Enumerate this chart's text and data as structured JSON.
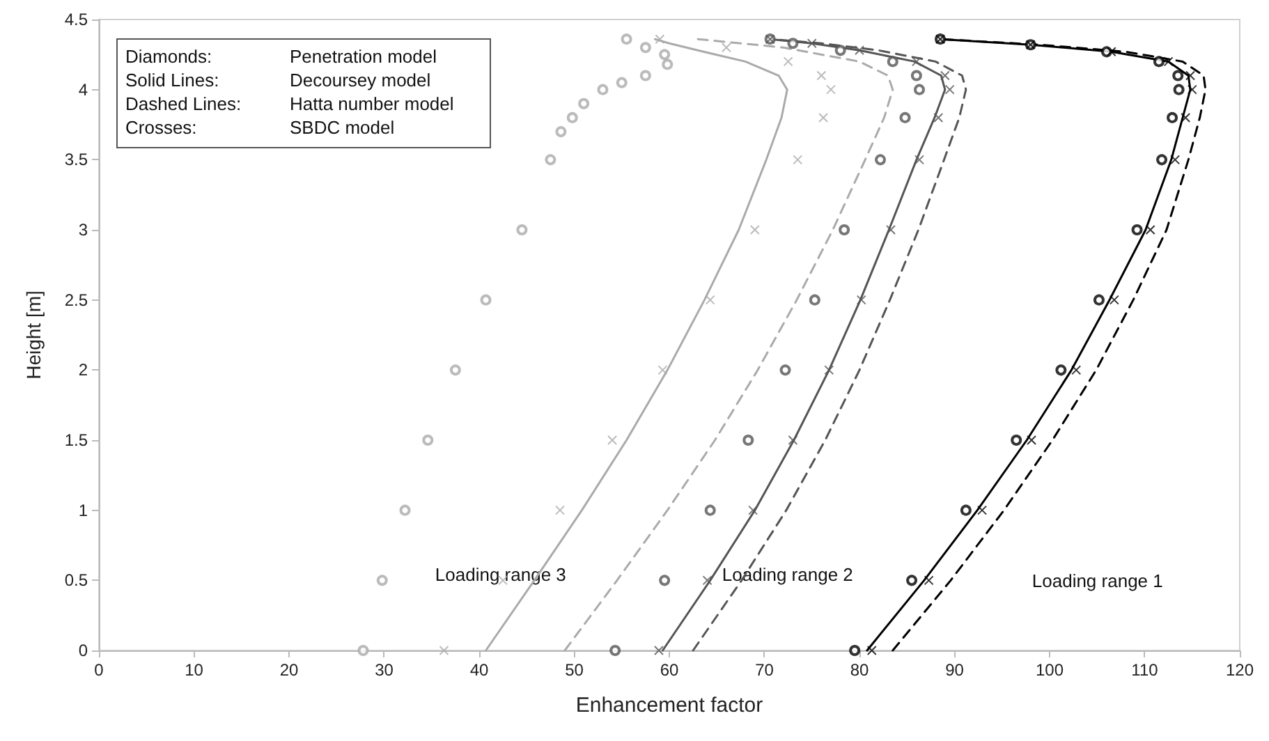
{
  "chart_data": {
    "type": "line",
    "xlabel": "Enhancement factor",
    "ylabel": "Height [m]",
    "xlim": [
      0,
      120
    ],
    "xticks": [
      0,
      10,
      20,
      30,
      40,
      50,
      60,
      70,
      80,
      90,
      100,
      110,
      120
    ],
    "ylim": [
      0,
      4.5
    ],
    "yticks": [
      0,
      0.5,
      1,
      1.5,
      2,
      2.5,
      3,
      3.5,
      4,
      4.5
    ],
    "annotations": [
      "Diamonds:\tPenetration model",
      "Solid Lines:\tDecoursey model",
      "Dashed Lines:\tHatta number model",
      "Crosses:\tSBDC model",
      "Loading range 3",
      "Loading range 2",
      "Loading range 1"
    ],
    "series": [
      {
        "type": "scatter",
        "marker": "circle",
        "color": "#000000",
        "x": [
          79.5,
          85.5,
          91.2,
          96.5,
          101.2,
          105.2,
          109.2,
          111.8,
          112.9,
          113.6,
          113.5,
          111.5,
          106,
          98,
          88.5
        ],
        "values": [
          0,
          0.5,
          1,
          1.5,
          2,
          2.5,
          3,
          3.5,
          3.8,
          4,
          4.1,
          4.2,
          4.27,
          4.32,
          4.36
        ]
      },
      {
        "marker": "none",
        "line_style": "solid",
        "color": "#000000",
        "x": [
          80.8,
          86.8,
          92.4,
          97.6,
          102.3,
          106.3,
          110.1,
          112.8,
          114,
          114.8,
          114.6,
          112.5,
          106.5,
          98,
          88.5
        ],
        "values": [
          0,
          0.5,
          1,
          1.5,
          2,
          2.5,
          3,
          3.5,
          3.8,
          4,
          4.1,
          4.2,
          4.27,
          4.32,
          4.36
        ]
      },
      {
        "type": "scatter",
        "marker": "cross",
        "color": "#000000",
        "x": [
          81.3,
          87.3,
          92.9,
          98.1,
          102.8,
          106.8,
          110.6,
          113.2,
          114.3,
          115,
          114.8,
          112.5,
          106.5,
          98,
          88.5
        ],
        "values": [
          0,
          0.5,
          1,
          1.5,
          2,
          2.5,
          3,
          3.5,
          3.8,
          4,
          4.1,
          4.2,
          4.27,
          4.32,
          4.36
        ]
      },
      {
        "marker": "none",
        "line_style": "dashed",
        "color": "#000000",
        "x": [
          83.5,
          89.6,
          95.2,
          100.3,
          104.9,
          108.8,
          112.3,
          114.6,
          115.8,
          116.4,
          116.2,
          114,
          108,
          99,
          88.5
        ],
        "values": [
          0,
          0.5,
          1,
          1.5,
          2,
          2.5,
          3,
          3.5,
          3.8,
          4,
          4.1,
          4.2,
          4.27,
          4.32,
          4.36
        ]
      },
      {
        "type": "scatter",
        "marker": "circle",
        "color": "#555555",
        "x": [
          54.3,
          59.5,
          64.3,
          68.3,
          72.2,
          75.3,
          78.4,
          82.2,
          84.8,
          86.3,
          86,
          83.5,
          78,
          73,
          70.6
        ],
        "values": [
          0,
          0.5,
          1,
          1.5,
          2,
          2.5,
          3,
          3.5,
          3.8,
          4,
          4.1,
          4.2,
          4.28,
          4.33,
          4.36
        ]
      },
      {
        "marker": "none",
        "line_style": "solid",
        "color": "#555555",
        "x": [
          59.3,
          64.3,
          69,
          73.1,
          76.8,
          80.1,
          83.1,
          86,
          87.9,
          89,
          88.6,
          85.8,
          80,
          75,
          70.6
        ],
        "values": [
          0,
          0.5,
          1,
          1.5,
          2,
          2.5,
          3,
          3.5,
          3.8,
          4,
          4.1,
          4.2,
          4.28,
          4.33,
          4.36
        ]
      },
      {
        "type": "scatter",
        "marker": "cross",
        "color": "#555555",
        "x": [
          58.9,
          64,
          68.8,
          73,
          76.8,
          80.2,
          83.3,
          86.3,
          88.3,
          89.5,
          89,
          86,
          80,
          75,
          70.6
        ],
        "values": [
          0,
          0.5,
          1,
          1.5,
          2,
          2.5,
          3,
          3.5,
          3.8,
          4,
          4.1,
          4.2,
          4.28,
          4.33,
          4.36
        ]
      },
      {
        "marker": "none",
        "line_style": "dashed",
        "color": "#555555",
        "x": [
          62.5,
          67.6,
          72.3,
          76.4,
          80,
          83.2,
          86.2,
          88.9,
          90.5,
          91.2,
          90.8,
          88,
          82,
          76,
          70.6
        ],
        "values": [
          0,
          0.5,
          1,
          1.5,
          2,
          2.5,
          3,
          3.5,
          3.8,
          4,
          4.1,
          4.2,
          4.28,
          4.33,
          4.36
        ]
      },
      {
        "type": "scatter",
        "marker": "circle",
        "color": "#aaaaaa",
        "x": [
          27.8,
          29.8,
          32.2,
          34.6,
          37.5,
          40.7,
          44.5,
          47.5,
          48.6,
          49.8,
          51,
          53,
          55,
          57.5,
          59.8,
          59.5,
          57.5,
          55.5
        ],
        "values": [
          0,
          0.5,
          1,
          1.5,
          2,
          2.5,
          3,
          3.5,
          3.7,
          3.8,
          3.9,
          4,
          4.05,
          4.1,
          4.18,
          4.25,
          4.3,
          4.36
        ]
      },
      {
        "marker": "none",
        "line_style": "solid",
        "color": "#aaaaaa",
        "x": [
          40.7,
          45.8,
          50.8,
          55.5,
          59.8,
          63.7,
          67.3,
          70.2,
          71.8,
          72.4,
          71.5,
          68,
          63,
          60,
          58.5
        ],
        "values": [
          0,
          0.5,
          1,
          1.5,
          2,
          2.5,
          3,
          3.5,
          3.8,
          4,
          4.1,
          4.2,
          4.28,
          4.33,
          4.36
        ]
      },
      {
        "type": "scatter",
        "marker": "cross",
        "color": "#aaaaaa",
        "x": [
          36.3,
          42.5,
          48.5,
          54,
          59.3,
          64.3,
          69,
          73.5,
          76.2,
          77,
          76,
          72.5,
          66,
          59
        ],
        "values": [
          0,
          0.5,
          1,
          1.5,
          2,
          2.5,
          3,
          3.5,
          3.8,
          4,
          4.1,
          4.2,
          4.3,
          4.36
        ]
      },
      {
        "marker": "none",
        "line_style": "dashed",
        "color": "#aaaaaa",
        "x": [
          49,
          54.5,
          59.8,
          64.8,
          69.3,
          73.4,
          77.2,
          80.6,
          82.6,
          83.5,
          83,
          80,
          72,
          63
        ],
        "values": [
          0,
          0.5,
          1,
          1.5,
          2,
          2.5,
          3,
          3.5,
          3.8,
          4,
          4.1,
          4.2,
          4.3,
          4.36
        ]
      }
    ]
  }
}
